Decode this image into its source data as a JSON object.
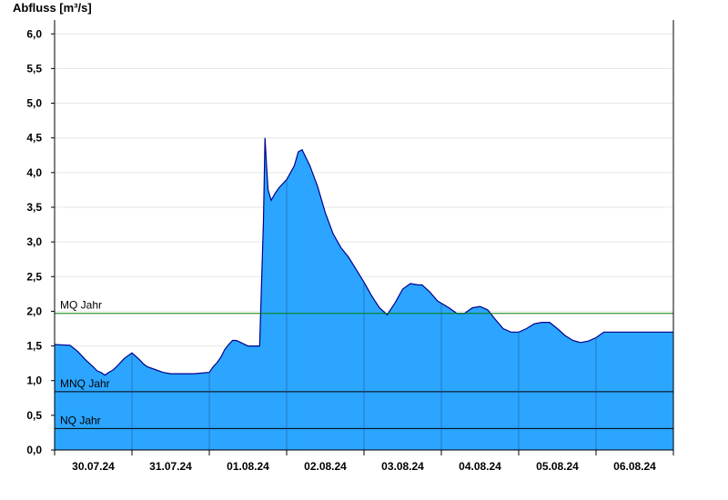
{
  "chart_data": {
    "type": "area",
    "ylabel": "Abfluss [m³/s]",
    "xlabel": "",
    "title": "",
    "ylim": [
      0,
      6.2
    ],
    "y_ticks": [
      "0,0",
      "0,5",
      "1,0",
      "1,5",
      "2,0",
      "2,5",
      "3,0",
      "3,5",
      "4,0",
      "4,5",
      "5,0",
      "5,5",
      "6,0"
    ],
    "y_tick_values": [
      0,
      0.5,
      1,
      1.5,
      2,
      2.5,
      3,
      3.5,
      4,
      4.5,
      5,
      5.5,
      6
    ],
    "xlim_days": [
      0,
      8
    ],
    "x_tick_labels": [
      "30.07.24",
      "31.07.24",
      "01.08.24",
      "02.08.24",
      "03.08.24",
      "04.08.24",
      "05.08.24",
      "06.08.24"
    ],
    "grid": true,
    "area_color": "#2ba5ff",
    "line_color": "#00008b",
    "reference_lines": [
      {
        "name": "MQ Jahr",
        "value": 1.97,
        "color": "#008000"
      },
      {
        "name": "MNQ Jahr",
        "value": 0.84,
        "color": "#000000"
      },
      {
        "name": "NQ Jahr",
        "value": 0.31,
        "color": "#000000"
      }
    ],
    "series": [
      {
        "x": [
          0,
          0.2,
          0.3,
          0.4,
          0.5,
          0.55,
          0.6,
          0.65,
          0.7,
          0.75,
          0.8,
          0.9,
          1.0,
          1.1,
          1.15,
          1.2,
          1.3,
          1.4,
          1.5,
          1.6,
          1.8,
          2.0,
          2.05,
          2.1,
          2.15,
          2.2,
          2.25,
          2.3,
          2.35,
          2.5,
          2.65,
          2.7,
          2.72,
          2.74,
          2.76,
          2.8,
          2.85,
          2.9,
          3.0,
          3.1,
          3.15,
          3.2,
          3.3,
          3.4,
          3.5,
          3.6,
          3.7,
          3.8,
          3.9,
          4.0,
          4.1,
          4.2,
          4.3,
          4.4,
          4.5,
          4.6,
          4.7,
          4.75,
          4.85,
          4.95,
          5.1,
          5.2,
          5.3,
          5.4,
          5.5,
          5.6,
          5.7,
          5.8,
          5.9,
          6.0,
          6.1,
          6.2,
          6.3,
          6.4,
          6.5,
          6.6,
          6.7,
          6.8,
          6.9,
          7.0,
          7.1,
          7.2,
          7.4,
          7.5,
          7.6,
          8.0
        ],
        "y": [
          1.52,
          1.51,
          1.42,
          1.3,
          1.2,
          1.14,
          1.12,
          1.08,
          1.12,
          1.15,
          1.2,
          1.32,
          1.4,
          1.3,
          1.24,
          1.2,
          1.16,
          1.12,
          1.1,
          1.1,
          1.1,
          1.12,
          1.2,
          1.26,
          1.34,
          1.45,
          1.52,
          1.58,
          1.58,
          1.5,
          1.5,
          3.3,
          4.5,
          4.1,
          3.75,
          3.6,
          3.7,
          3.78,
          3.9,
          4.1,
          4.3,
          4.33,
          4.1,
          3.8,
          3.42,
          3.12,
          2.92,
          2.78,
          2.6,
          2.42,
          2.22,
          2.05,
          1.95,
          2.12,
          2.32,
          2.4,
          2.38,
          2.38,
          2.28,
          2.15,
          2.05,
          1.97,
          1.97,
          2.05,
          2.07,
          2.02,
          1.88,
          1.75,
          1.7,
          1.7,
          1.75,
          1.82,
          1.84,
          1.84,
          1.75,
          1.65,
          1.58,
          1.55,
          1.57,
          1.62,
          1.7,
          1.7,
          1.7,
          1.7,
          1.7,
          1.7
        ]
      }
    ]
  }
}
